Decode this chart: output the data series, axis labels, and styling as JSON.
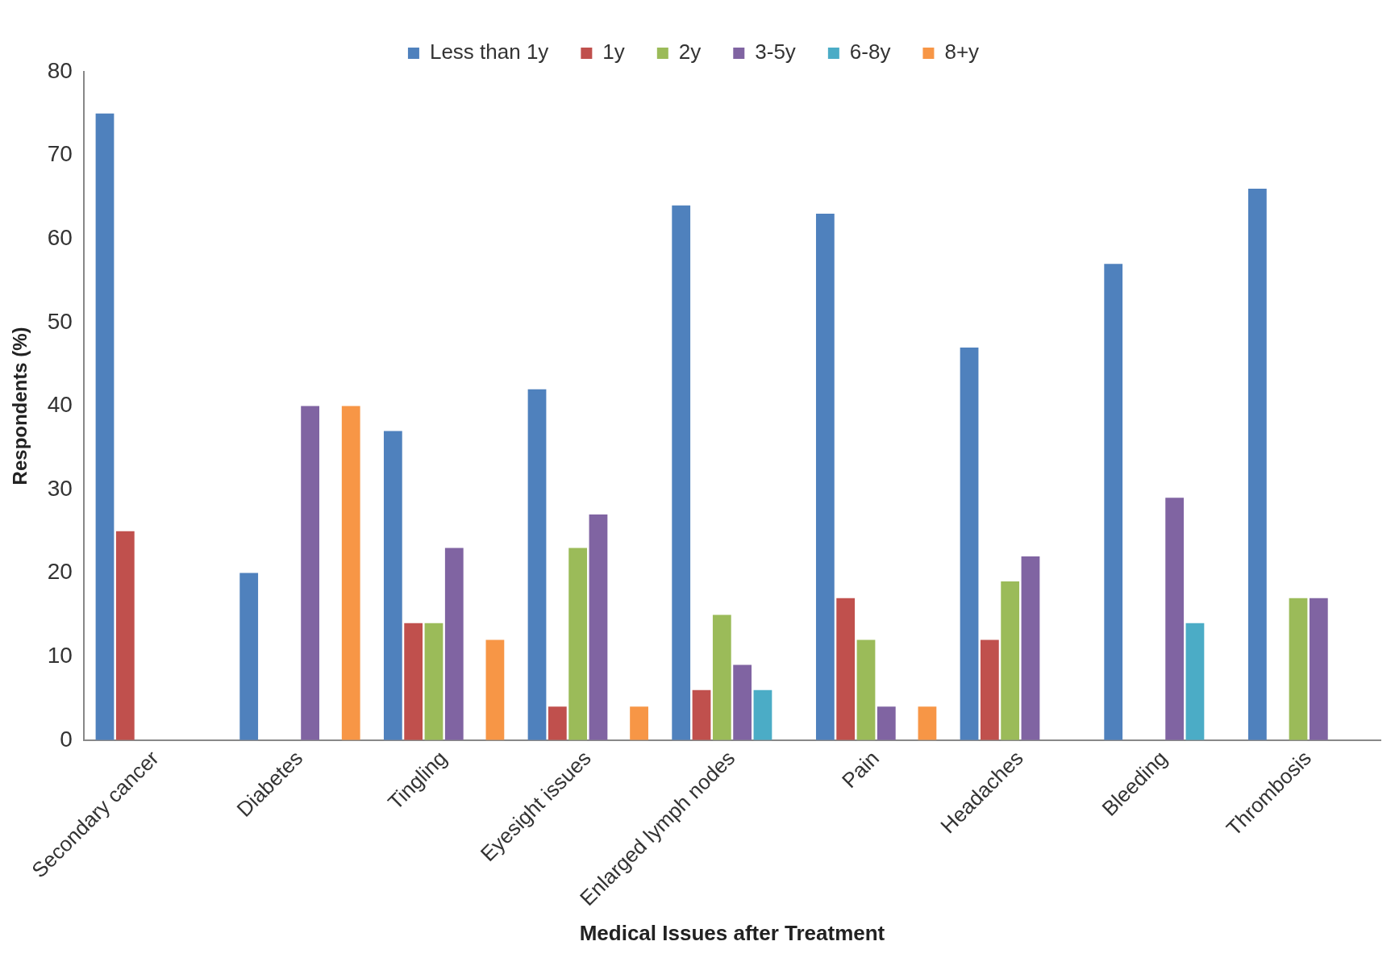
{
  "chart_data": {
    "type": "bar",
    "xlabel": "Medical Issues after Treatment",
    "ylabel": "Respondents (%)",
    "categories": [
      "Secondary cancer",
      "Diabetes",
      "Tingling",
      "Eyesight issues",
      "Enlarged lymph nodes",
      "Pain",
      "Headaches",
      "Bleeding",
      "Thrombosis"
    ],
    "series": [
      {
        "name": "Less than 1y",
        "color": "#4f81bd",
        "values": [
          75,
          20,
          37,
          42,
          64,
          63,
          47,
          57,
          66
        ]
      },
      {
        "name": "1y",
        "color": "#c0504d",
        "values": [
          25,
          null,
          14,
          4,
          6,
          17,
          12,
          null,
          null
        ]
      },
      {
        "name": "2y",
        "color": "#9bbb59",
        "values": [
          null,
          null,
          14,
          23,
          15,
          12,
          19,
          null,
          17
        ]
      },
      {
        "name": "3-5y",
        "color": "#8064a2",
        "values": [
          null,
          40,
          23,
          27,
          9,
          4,
          22,
          29,
          17
        ]
      },
      {
        "name": "6-8y",
        "color": "#4bacc6",
        "values": [
          null,
          null,
          null,
          null,
          6,
          null,
          null,
          14,
          null
        ]
      },
      {
        "name": "8+y",
        "color": "#f79646",
        "values": [
          null,
          40,
          12,
          4,
          null,
          4,
          null,
          null,
          null
        ]
      }
    ],
    "ylim": [
      0,
      80
    ],
    "yticks": [
      0,
      10,
      20,
      30,
      40,
      50,
      60,
      70,
      80
    ],
    "grid": false,
    "legend": "top"
  }
}
